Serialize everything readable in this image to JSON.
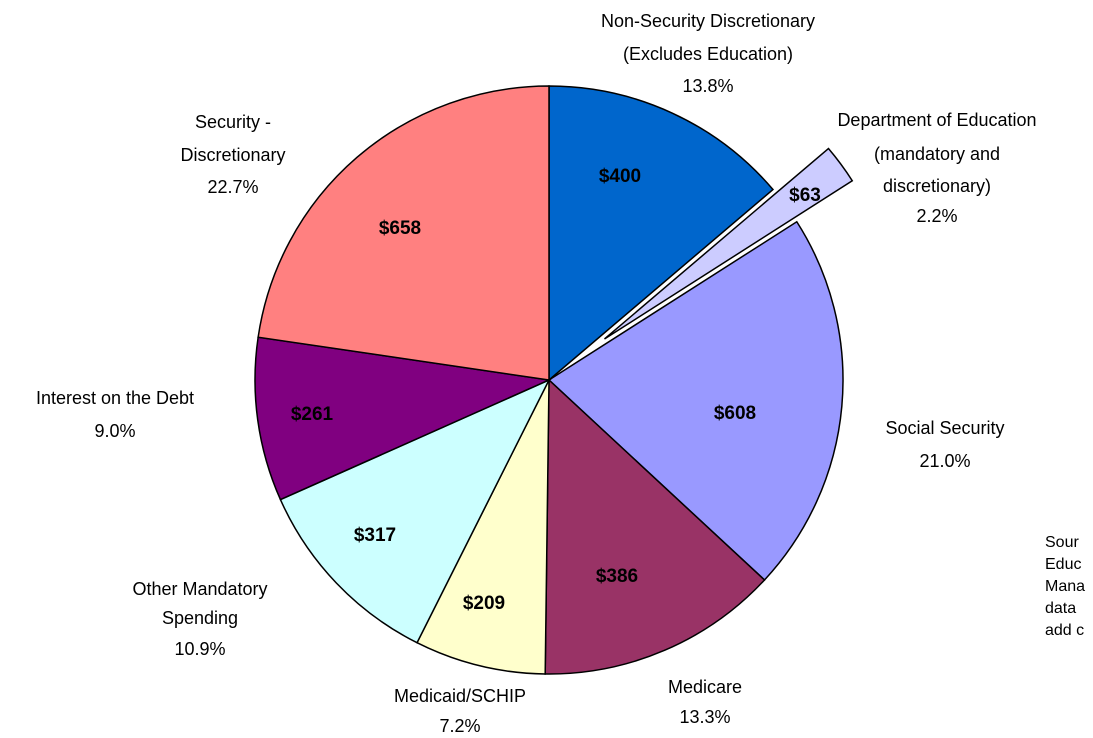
{
  "chart_data": {
    "type": "pie",
    "categories": [
      [
        "Non-Security Discretionary",
        "(Excludes Education)"
      ],
      [
        "Department of Education",
        "(mandatory and",
        "discretionary)"
      ],
      [
        "Social Security"
      ],
      [
        "Medicare"
      ],
      [
        "Medicaid/SCHIP"
      ],
      [
        "Other Mandatory",
        "Spending"
      ],
      [
        "Interest on the Debt"
      ],
      [
        "Security -",
        "Discretionary"
      ]
    ],
    "values": [
      400,
      63,
      608,
      386,
      209,
      317,
      261,
      658
    ],
    "value_labels": [
      "$400",
      "$63",
      "$608",
      "$386",
      "$209",
      "$317",
      "$261",
      "$658"
    ],
    "percents": [
      13.8,
      2.2,
      21.0,
      13.3,
      7.2,
      10.9,
      9.0,
      22.7
    ],
    "percent_labels": [
      "13.8%",
      "2.2%",
      "21.0%",
      "13.3%",
      "7.2%",
      "10.9%",
      "9.0%",
      "22.7%"
    ],
    "colors": [
      "#0066cc",
      "#ccccff",
      "#9999ff",
      "#993366",
      "#ffffcc",
      "#ccffff",
      "#800080",
      "#ff8080"
    ],
    "exploded": [
      1
    ],
    "source_note": [
      "Sour",
      "Educ",
      "Mana",
      "data",
      "add c"
    ]
  }
}
